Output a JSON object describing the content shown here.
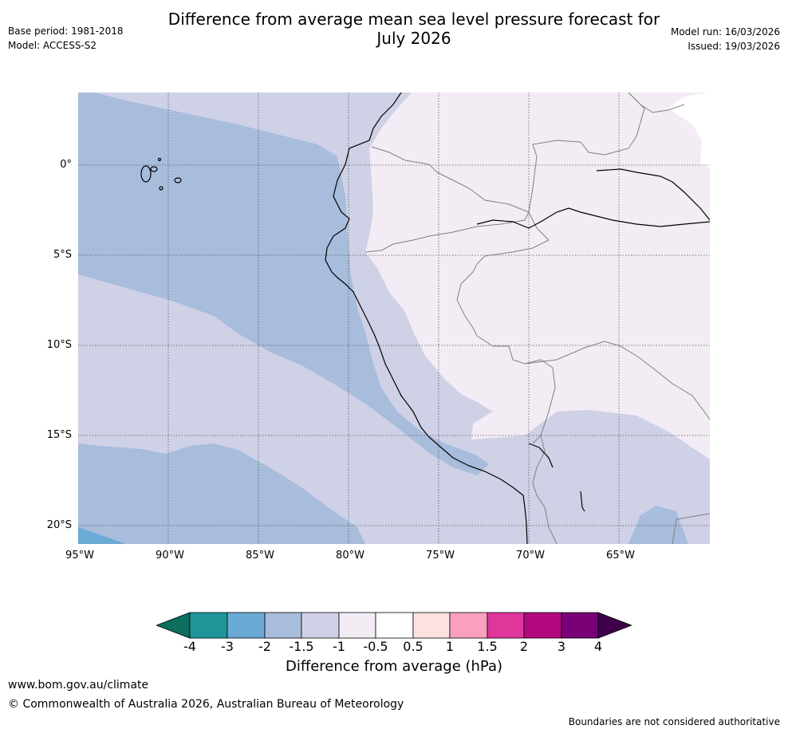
{
  "header": {
    "title_line1": "Difference from average mean sea level pressure forecast for",
    "title_line2": "July 2026",
    "base_period": "Base period: 1981-2018",
    "model": "Model: ACCESS-S2",
    "model_run": "Model run: 16/03/2026",
    "issued": "Issued: 19/03/2026"
  },
  "map": {
    "lat_labels": [
      "0°",
      "5°S",
      "10°S",
      "15°S",
      "20°S"
    ],
    "lon_labels": [
      "95°W",
      "90°W",
      "85°W",
      "80°W",
      "75°W",
      "70°W",
      "65°W"
    ],
    "grid_color": "#555555",
    "coast_color": "#000000",
    "border_color": "#808080"
  },
  "colorbar": {
    "ticks": [
      "-4",
      "-3",
      "-2",
      "-1.5",
      "-1",
      "-0.5",
      "0.5",
      "1",
      "1.5",
      "2",
      "3",
      "4"
    ],
    "colors": {
      "below_min": "#0b6e5e",
      "-4_-3": "#1e9599",
      "-3_-2": "#6aaad4",
      "-2_-1.5": "#a8bcdc",
      "-1.5_-1": "#cfd1e6",
      "-1_-0.5": "#f3ecf5",
      "-0.5_0.5": "#ffffff",
      "0.5_1": "#fde0e0",
      "1_1.5": "#f8a0bd",
      "1.5_2": "#e0359a",
      "2_3": "#b3077f",
      "3_4": "#7a0077",
      "above_max": "#3f004a"
    },
    "label": "Difference from average (hPa)"
  },
  "footer": {
    "website": "www.bom.gov.au/climate",
    "copyright": "© Commonwealth of Australia 2026, Australian Bureau of Meteorology",
    "disclaimer": "Boundaries are not considered authoritative"
  }
}
